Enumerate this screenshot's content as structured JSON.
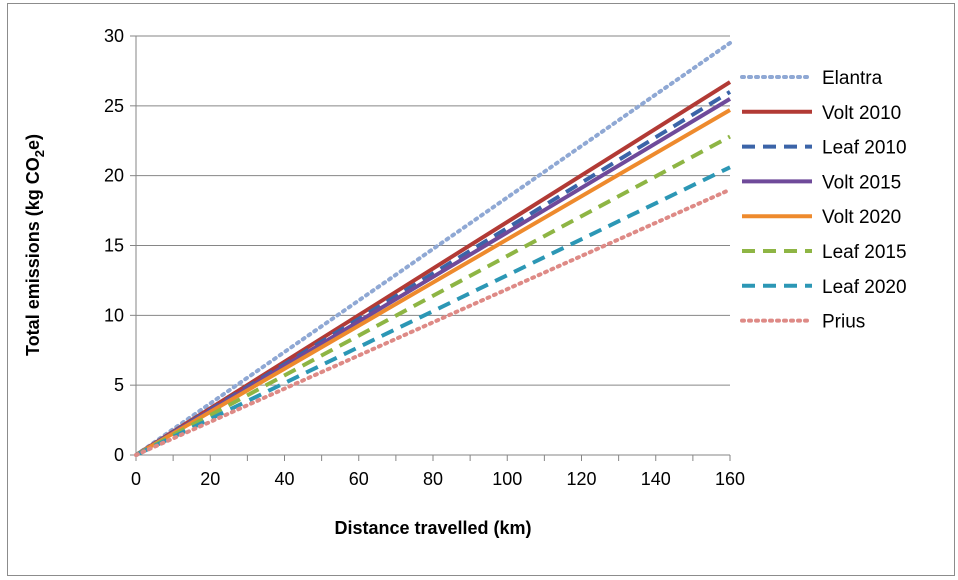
{
  "chart_data": {
    "type": "line",
    "title": "",
    "xlabel": "Distance travelled (km)",
    "ylabel_main": "Total emissions (kg CO",
    "ylabel_sub": "2",
    "ylabel_end": "e)",
    "xlim": [
      0,
      160
    ],
    "ylim": [
      0,
      30
    ],
    "x_ticks": [
      "0",
      "20",
      "40",
      "60",
      "80",
      "100",
      "120",
      "140",
      "160"
    ],
    "y_ticks": [
      "0",
      "5",
      "10",
      "15",
      "20",
      "25",
      "30"
    ],
    "grid": "horizontal major gridlines",
    "legend_position": "right",
    "x": [
      0,
      160
    ],
    "series": [
      {
        "name": "Elantra",
        "values": [
          0,
          29.5
        ],
        "color": "#8fa8d4",
        "style": "dotted"
      },
      {
        "name": "Volt 2010",
        "values": [
          0,
          26.7
        ],
        "color": "#b23a35",
        "style": "solid"
      },
      {
        "name": "Leaf 2010",
        "values": [
          0,
          26.0
        ],
        "color": "#3b64a8",
        "style": "dashed"
      },
      {
        "name": "Volt 2015",
        "values": [
          0,
          25.5
        ],
        "color": "#6f4a9a",
        "style": "solid"
      },
      {
        "name": "Volt 2020",
        "values": [
          0,
          24.7
        ],
        "color": "#ee8a2d",
        "style": "solid"
      },
      {
        "name": "Leaf 2015",
        "values": [
          0,
          22.8
        ],
        "color": "#8eb544",
        "style": "dashed"
      },
      {
        "name": "Leaf 2020",
        "values": [
          0,
          20.6
        ],
        "color": "#2c97b5",
        "style": "dashed"
      },
      {
        "name": "Prius",
        "values": [
          0,
          19.0
        ],
        "color": "#de8a86",
        "style": "dotted"
      }
    ]
  }
}
